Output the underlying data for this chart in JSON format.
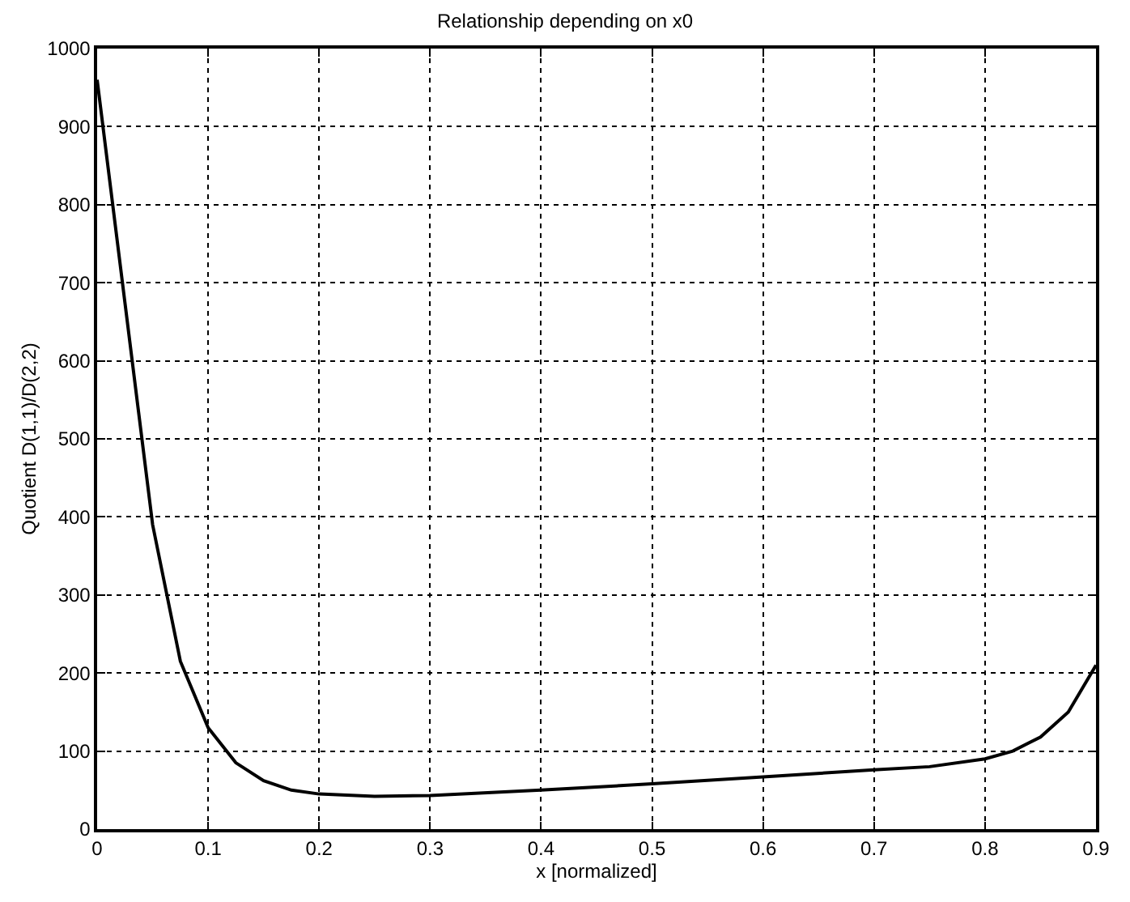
{
  "chart_data": {
    "type": "line",
    "title": "Relationship depending on x0",
    "xlabel": "x [normalized]",
    "ylabel": "Quotient D(1,1)/D(2,2)",
    "x": [
      0,
      0.025,
      0.05,
      0.075,
      0.1,
      0.125,
      0.15,
      0.175,
      0.2,
      0.25,
      0.3,
      0.4,
      0.5,
      0.6,
      0.7,
      0.75,
      0.8,
      0.825,
      0.85,
      0.875,
      0.9
    ],
    "series": [
      {
        "color": "#000000",
        "values": [
          960,
          675,
          390,
          215,
          130,
          85,
          62,
          50,
          45,
          42,
          43,
          50,
          58,
          67,
          76,
          80,
          90,
          100,
          118,
          150,
          210
        ]
      }
    ],
    "xlim": [
      0,
      0.9
    ],
    "ylim": [
      0,
      1000
    ],
    "xticks": [
      0,
      0.1,
      0.2,
      0.3,
      0.4,
      0.5,
      0.6,
      0.7,
      0.8,
      0.9
    ],
    "yticks": [
      0,
      100,
      200,
      300,
      400,
      500,
      600,
      700,
      800,
      900,
      1000
    ],
    "grid": true,
    "line_style": "solid"
  }
}
